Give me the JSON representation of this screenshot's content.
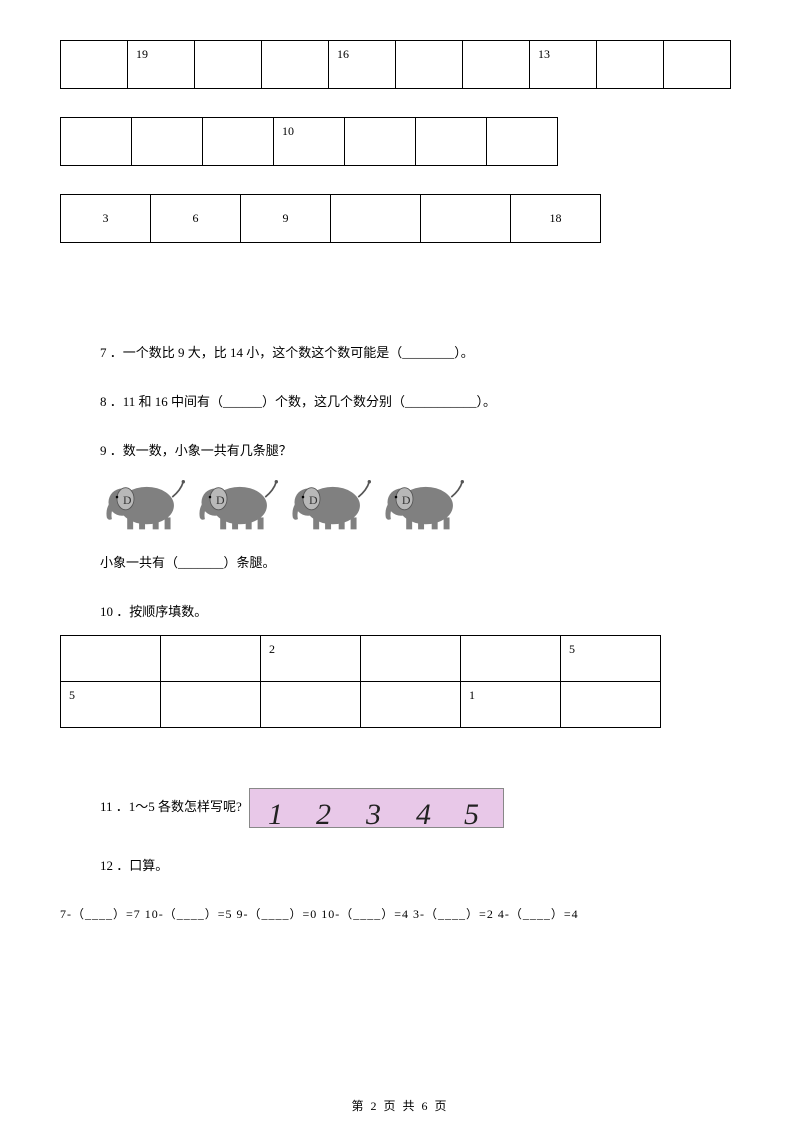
{
  "tables": {
    "t1": {
      "cols": 10,
      "cells": [
        "",
        "19",
        "",
        "",
        "16",
        "",
        "",
        "13",
        "",
        ""
      ]
    },
    "t2": {
      "cols": 7,
      "cells": [
        "",
        "",
        "",
        "10",
        "",
        "",
        ""
      ]
    },
    "t3": {
      "cols": 6,
      "cells": [
        "3",
        "6",
        "9",
        "",
        "",
        "18"
      ]
    }
  },
  "q7": "7 ．一个数比 9 大，比 14 小，这个数这个数可能是（________）。",
  "q8": "8 ．11 和 16 中间有（______）个数，这几个数分别（___________）。",
  "q9_title": "9 ．数一数，小象一共有几条腿？",
  "q9_answer": "小象一共有（_______）条腿。",
  "q10_title": "10 ．按顺序填数。",
  "grid": {
    "row1": [
      "",
      "",
      "2",
      "",
      "",
      "5"
    ],
    "row2": [
      "5",
      "",
      "",
      "",
      "1",
      ""
    ]
  },
  "q11": "11 ．1～5 各数怎样写呢?",
  "digits": [
    "1",
    "2",
    "3",
    "4",
    "5"
  ],
  "digit_positions": [
    18,
    66,
    116,
    166,
    214
  ],
  "q12": "12 ．口算。",
  "calc": "7-（____）=7   10-（____）=5   9-（____）=0   10-（____）=4   3-（____）=2    4-（____）=4",
  "footer": "第 2 页 共 6 页",
  "colors": {
    "bg": "#ffffff",
    "text": "#000000",
    "border": "#000000",
    "writing_bg": "#e8c8e8",
    "elephant_body": "#808080",
    "elephant_dark": "#555555"
  }
}
